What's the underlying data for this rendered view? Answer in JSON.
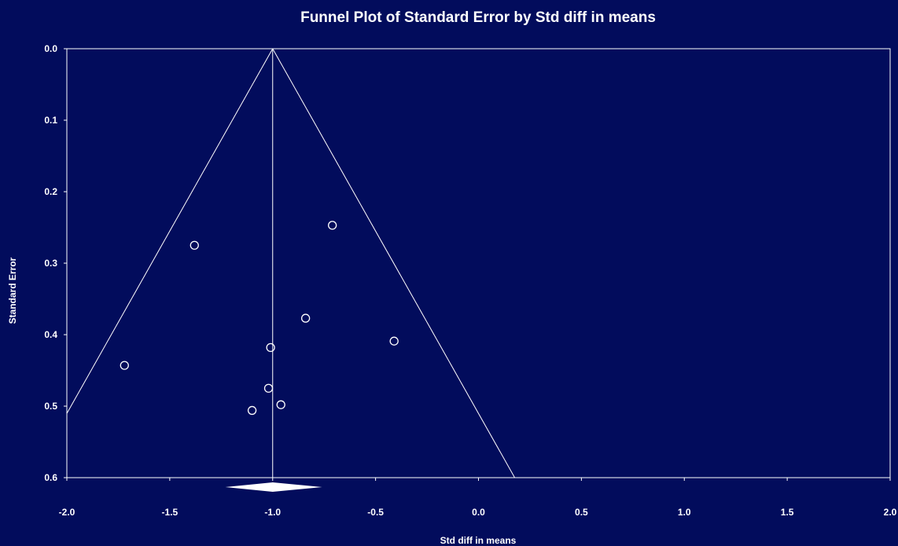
{
  "chart_data": {
    "type": "scatter",
    "title": "Funnel Plot of Standard Error by Std diff in means",
    "xlabel": "Std diff in means",
    "ylabel": "Standard Error",
    "xlim": [
      -2.0,
      2.0
    ],
    "ylim": [
      0.0,
      0.6
    ],
    "y_inverted": true,
    "x_ticks": [
      "-2.0",
      "-1.5",
      "-1.0",
      "-0.5",
      "0.0",
      "0.5",
      "1.0",
      "1.5",
      "2.0"
    ],
    "y_ticks": [
      "0.0",
      "0.1",
      "0.2",
      "0.3",
      "0.4",
      "0.5",
      "0.6"
    ],
    "pooled_estimate": -1.0,
    "pooled_ci": [
      -1.23,
      -0.76
    ],
    "funnel_limits": {
      "apex_se": 0.0,
      "half_width_per_se": 1.96
    },
    "points": [
      {
        "x": -0.71,
        "y": 0.247
      },
      {
        "x": -1.38,
        "y": 0.275
      },
      {
        "x": -0.84,
        "y": 0.377
      },
      {
        "x": -0.41,
        "y": 0.409
      },
      {
        "x": -1.01,
        "y": 0.418
      },
      {
        "x": -1.72,
        "y": 0.443
      },
      {
        "x": -1.02,
        "y": 0.475
      },
      {
        "x": -0.96,
        "y": 0.498
      },
      {
        "x": -1.1,
        "y": 0.506
      }
    ],
    "colors": {
      "background": "#020c5c",
      "foreground": "#ffffff"
    },
    "grid": false
  }
}
